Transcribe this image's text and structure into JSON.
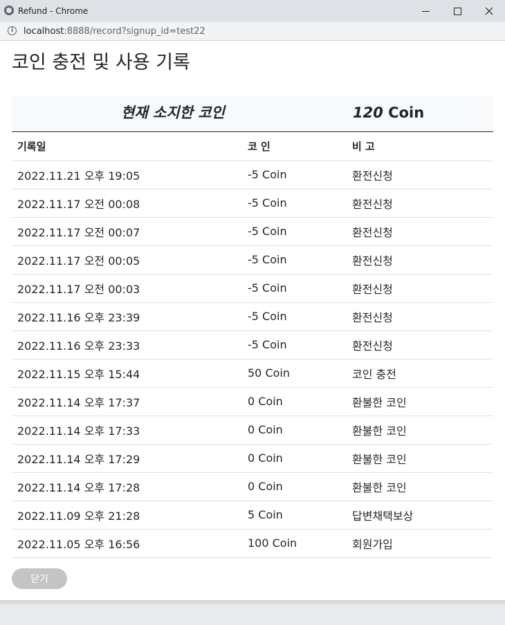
{
  "window": {
    "title": "Refund - Chrome",
    "url_host": "localhost",
    "url_rest": ":8888/record?signup_id=test22"
  },
  "page": {
    "title": "코인 충전 및 사용 기록"
  },
  "summary": {
    "label": "현재 소지한 코인",
    "amount": "120",
    "unit": "Coin"
  },
  "table": {
    "headers": [
      "기록일",
      "코 인",
      "비 고"
    ],
    "rows": [
      [
        "2022.11.21 오후 19:05",
        "-5 Coin",
        "환전신청"
      ],
      [
        "2022.11.17 오전 00:08",
        "-5 Coin",
        "환전신청"
      ],
      [
        "2022.11.17 오전 00:07",
        "-5 Coin",
        "환전신청"
      ],
      [
        "2022.11.17 오전 00:05",
        "-5 Coin",
        "환전신청"
      ],
      [
        "2022.11.17 오전 00:03",
        "-5 Coin",
        "환전신청"
      ],
      [
        "2022.11.16 오후 23:39",
        "-5 Coin",
        "환전신청"
      ],
      [
        "2022.11.16 오후 23:33",
        "-5 Coin",
        "환전신청"
      ],
      [
        "2022.11.15 오후 15:44",
        "50 Coin",
        "코인 충전"
      ],
      [
        "2022.11.14 오후 17:37",
        "0 Coin",
        "환불한 코인"
      ],
      [
        "2022.11.14 오후 17:33",
        "0 Coin",
        "환불한 코인"
      ],
      [
        "2022.11.14 오후 17:29",
        "0 Coin",
        "환불한 코인"
      ],
      [
        "2022.11.14 오후 17:28",
        "0 Coin",
        "환불한 코인"
      ],
      [
        "2022.11.09 오후 21:28",
        "5 Coin",
        "답변채택보상"
      ],
      [
        "2022.11.05 오후 16:56",
        "100 Coin",
        "회원가입"
      ]
    ]
  },
  "actions": {
    "close_label": "닫기"
  }
}
